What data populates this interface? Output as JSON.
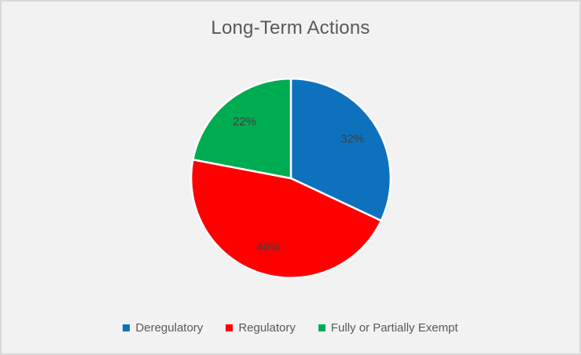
{
  "window": {
    "background_color": "#F2F2F2",
    "border_color": "#D9D9D9"
  },
  "chart_data": {
    "type": "pie",
    "title": "Long-Term Actions",
    "categories": [
      "Deregulatory",
      "Regulatory",
      "Fully or Partially Exempt"
    ],
    "values": [
      32,
      46,
      22
    ],
    "data_labels": [
      "32%",
      "46%",
      "22%"
    ],
    "colors": [
      "#0E71BE",
      "#FE0000",
      "#00AC52"
    ],
    "start_angle_deg": 0,
    "direction": "clockwise",
    "legend_position": "bottom",
    "title_color": "#595959",
    "legend_text_color": "#595959",
    "data_label_color": "#404040",
    "slice_border_color": "#FFFFFF"
  }
}
